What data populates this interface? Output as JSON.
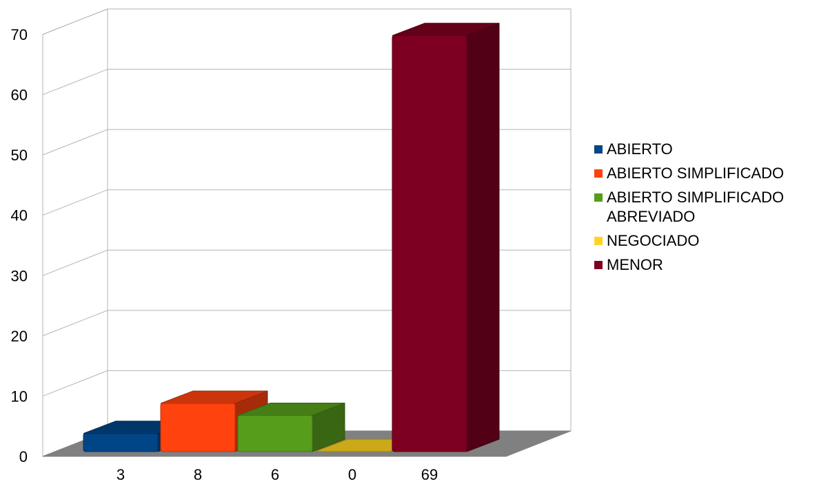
{
  "chart_data": {
    "type": "bar",
    "categories": [
      "3",
      "8",
      "6",
      "0",
      "69"
    ],
    "series": [
      {
        "name": "ABIERTO",
        "values": [
          3,
          null,
          null,
          null,
          null
        ]
      },
      {
        "name": "ABIERTO SIMPLIFICADO",
        "values": [
          null,
          8,
          null,
          null,
          null
        ]
      },
      {
        "name": "ABIERTO SIMPLIFICADO ABREVIADO",
        "values": [
          null,
          null,
          6,
          null,
          null
        ]
      },
      {
        "name": "NEGOCIADO",
        "values": [
          null,
          null,
          null,
          0,
          null
        ]
      },
      {
        "name": "MENOR",
        "values": [
          null,
          null,
          null,
          null,
          69
        ]
      }
    ],
    "values": [
      3,
      8,
      6,
      0,
      69
    ],
    "colors": [
      "#004586",
      "#ff420e",
      "#579d1c",
      "#ffd320",
      "#7e0021"
    ],
    "title": "",
    "xlabel": "",
    "ylabel": "",
    "ylim": [
      0,
      70
    ],
    "yticks": [
      0,
      10,
      20,
      30,
      40,
      50,
      60,
      70
    ],
    "grid": true,
    "three_d": true,
    "legend_position": "right"
  }
}
